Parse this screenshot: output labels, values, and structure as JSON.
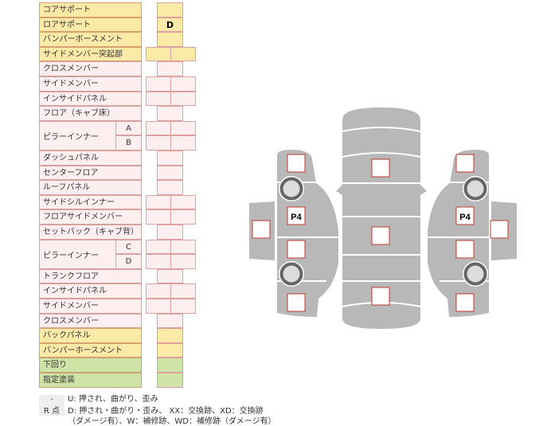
{
  "rows": [
    {
      "label": "コアサポート",
      "type": "single",
      "color": "yellow",
      "value": ""
    },
    {
      "label": "ロアサポート",
      "type": "single",
      "color": "yellow",
      "value": "D"
    },
    {
      "label": "バンパーボースメント",
      "type": "single",
      "color": "yellow",
      "value": ""
    },
    {
      "label": "サイドメンバー突起部",
      "type": "double",
      "color": "yellow",
      "value": ""
    },
    {
      "label": "クロスメンバー",
      "type": "single",
      "color": "pink",
      "value": ""
    },
    {
      "label": "サイドメンバー",
      "type": "double",
      "color": "pink",
      "value": ""
    },
    {
      "label": "インサイドパネル",
      "type": "double",
      "color": "pink",
      "value": ""
    },
    {
      "label": "フロア（キャブ床）",
      "type": "single",
      "color": "pink",
      "value": ""
    },
    {
      "label": "ピラーインナー",
      "sub": "A",
      "type": "double",
      "color": "pink",
      "value": ""
    },
    {
      "label": "",
      "sub": "B",
      "type": "double",
      "color": "pink",
      "value": ""
    },
    {
      "label": "ダッシュパネル",
      "type": "single",
      "color": "pink",
      "value": ""
    },
    {
      "label": "センターフロア",
      "type": "single",
      "color": "pink",
      "value": ""
    },
    {
      "label": "ルーフパネル",
      "type": "single",
      "color": "pink",
      "value": ""
    },
    {
      "label": "サイドシルインナー",
      "type": "double",
      "color": "pink",
      "value": ""
    },
    {
      "label": "フロアサイドメンバー",
      "type": "double",
      "color": "pink",
      "value": ""
    },
    {
      "label": "セットバック（キャブ背）",
      "type": "single",
      "color": "pink",
      "value": ""
    },
    {
      "label": "ピラーインナー",
      "sub": "C",
      "type": "double",
      "color": "pink",
      "value": ""
    },
    {
      "label": "",
      "sub": "D",
      "type": "double",
      "color": "pink",
      "value": ""
    },
    {
      "label": "トランクフロア",
      "type": "single",
      "color": "pink",
      "value": ""
    },
    {
      "label": "インサイドパネル",
      "type": "double",
      "color": "pink",
      "value": ""
    },
    {
      "label": "サイドメンバー",
      "type": "double",
      "color": "pink",
      "value": ""
    },
    {
      "label": "クロスメンバー",
      "type": "single",
      "color": "pink",
      "value": ""
    },
    {
      "label": "バックパネル",
      "type": "single",
      "color": "yellow",
      "value": ""
    },
    {
      "label": "バンパーホースメント",
      "type": "single",
      "color": "yellow",
      "value": ""
    },
    {
      "label": "下回り",
      "type": "single",
      "color": "green",
      "value": ""
    },
    {
      "label": "指定塗装",
      "type": "single",
      "color": "green",
      "value": ""
    }
  ],
  "legend": [
    {
      "key": "-",
      "text": "U: 押され、曲がり、歪み"
    },
    {
      "key": "R 点",
      "text": "D: 押され・曲がり・歪み、 XX：交換跡、XD：交換跡"
    },
    {
      "key": "",
      "text": "（ダメージ有）、W：補修跡、WD：補修跡（ダメージ有）"
    }
  ],
  "diagram": {
    "left_p4": "P4",
    "right_p4": "P4",
    "body_color": "#b8b8b8",
    "marker_border": "#c0392b"
  }
}
